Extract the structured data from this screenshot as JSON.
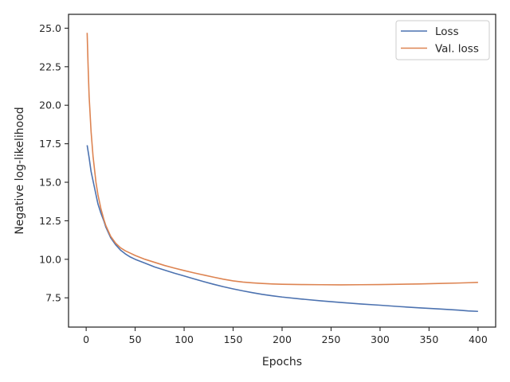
{
  "chart_data": {
    "type": "line",
    "title": "",
    "xlabel": "Epochs",
    "ylabel": "Negative log-likelihood",
    "xlim": [
      -18,
      418
    ],
    "ylim": [
      5.6,
      25.9
    ],
    "xticks": [
      0,
      50,
      100,
      150,
      200,
      250,
      300,
      350,
      400
    ],
    "yticks": [
      7.5,
      10.0,
      12.5,
      15.0,
      17.5,
      20.0,
      22.5,
      25.0
    ],
    "ytick_labels": [
      "7.5",
      "10.0",
      "12.5",
      "15.0",
      "17.5",
      "20.0",
      "22.5",
      "25.0"
    ],
    "grid": false,
    "legend_position": "top-right",
    "series": [
      {
        "name": "Loss",
        "color": "#4c72b0",
        "x": [
          1,
          3,
          5,
          8,
          10,
          12,
          15,
          18,
          20,
          25,
          30,
          35,
          40,
          45,
          50,
          60,
          70,
          80,
          90,
          100,
          110,
          120,
          130,
          140,
          150,
          160,
          170,
          180,
          190,
          200,
          220,
          240,
          260,
          280,
          300,
          320,
          340,
          360,
          380,
          390,
          400
        ],
        "values": [
          17.4,
          16.6,
          15.7,
          14.8,
          14.2,
          13.6,
          13.0,
          12.5,
          12.1,
          11.4,
          10.95,
          10.6,
          10.35,
          10.15,
          10.0,
          9.75,
          9.5,
          9.3,
          9.1,
          8.92,
          8.73,
          8.55,
          8.38,
          8.22,
          8.08,
          7.95,
          7.83,
          7.72,
          7.63,
          7.55,
          7.42,
          7.3,
          7.2,
          7.1,
          7.02,
          6.93,
          6.85,
          6.78,
          6.7,
          6.65,
          6.62
        ]
      },
      {
        "name": "Val. loss",
        "color": "#dd8452",
        "x": [
          1,
          2,
          3,
          5,
          7,
          10,
          12,
          15,
          18,
          20,
          25,
          30,
          35,
          40,
          45,
          50,
          60,
          70,
          80,
          90,
          100,
          110,
          120,
          130,
          140,
          150,
          160,
          170,
          180,
          190,
          200,
          220,
          240,
          260,
          280,
          300,
          320,
          340,
          360,
          380,
          390,
          400
        ],
        "values": [
          24.7,
          22.5,
          20.6,
          18.3,
          16.7,
          15.0,
          14.2,
          13.3,
          12.6,
          12.2,
          11.5,
          11.05,
          10.75,
          10.55,
          10.4,
          10.25,
          10.0,
          9.8,
          9.6,
          9.43,
          9.27,
          9.12,
          8.98,
          8.84,
          8.71,
          8.6,
          8.52,
          8.47,
          8.43,
          8.4,
          8.38,
          8.36,
          8.35,
          8.34,
          8.35,
          8.36,
          8.38,
          8.4,
          8.43,
          8.46,
          8.48,
          8.5
        ]
      }
    ]
  }
}
